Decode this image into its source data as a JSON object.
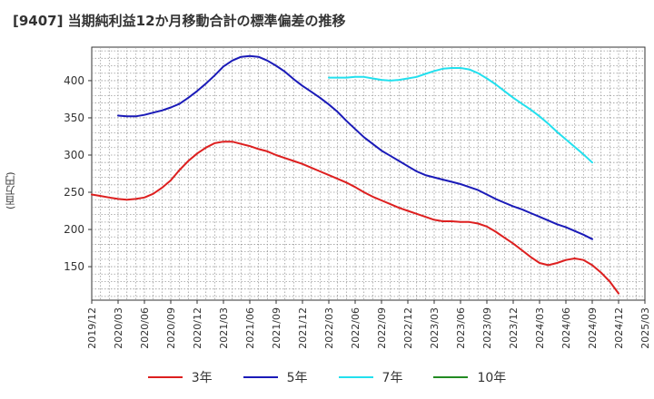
{
  "chart_data": {
    "type": "line",
    "title": "[9407]  当期純利益12か月移動合計の標準偏差の推移",
    "ylabel": "(百万円)",
    "xlabel": "",
    "ylim": [
      105,
      445
    ],
    "yticks": [
      150,
      200,
      250,
      300,
      350,
      400
    ],
    "xlim": [
      "2019-12",
      "2025-03"
    ],
    "xticks": [
      "2019/12",
      "2020/03",
      "2020/06",
      "2020/09",
      "2020/12",
      "2021/03",
      "2021/06",
      "2021/09",
      "2021/12",
      "2022/03",
      "2022/06",
      "2022/09",
      "2022/12",
      "2023/03",
      "2023/06",
      "2023/09",
      "2023/12",
      "2024/03",
      "2024/06",
      "2024/09",
      "2024/12",
      "2025/03"
    ],
    "grid": true,
    "legend_position": "bottom",
    "series": [
      {
        "name": "3年",
        "color": "#dd1f1f",
        "points": [
          [
            "2019-12",
            247
          ],
          [
            "2020-01",
            245
          ],
          [
            "2020-02",
            243
          ],
          [
            "2020-03",
            241
          ],
          [
            "2020-04",
            240
          ],
          [
            "2020-05",
            241
          ],
          [
            "2020-06",
            243
          ],
          [
            "2020-07",
            248
          ],
          [
            "2020-08",
            256
          ],
          [
            "2020-09",
            266
          ],
          [
            "2020-10",
            280
          ],
          [
            "2020-11",
            292
          ],
          [
            "2020-12",
            302
          ],
          [
            "2021-01",
            310
          ],
          [
            "2021-02",
            316
          ],
          [
            "2021-03",
            318
          ],
          [
            "2021-04",
            318
          ],
          [
            "2021-05",
            315
          ],
          [
            "2021-06",
            312
          ],
          [
            "2021-07",
            308
          ],
          [
            "2021-08",
            305
          ],
          [
            "2021-09",
            300
          ],
          [
            "2021-10",
            296
          ],
          [
            "2021-11",
            292
          ],
          [
            "2021-12",
            288
          ],
          [
            "2022-01",
            283
          ],
          [
            "2022-02",
            278
          ],
          [
            "2022-03",
            273
          ],
          [
            "2022-04",
            268
          ],
          [
            "2022-05",
            263
          ],
          [
            "2022-06",
            257
          ],
          [
            "2022-07",
            250
          ],
          [
            "2022-08",
            244
          ],
          [
            "2022-09",
            239
          ],
          [
            "2022-10",
            234
          ],
          [
            "2022-11",
            229
          ],
          [
            "2022-12",
            225
          ],
          [
            "2023-01",
            221
          ],
          [
            "2023-02",
            217
          ],
          [
            "2023-03",
            213
          ],
          [
            "2023-04",
            211
          ],
          [
            "2023-05",
            211
          ],
          [
            "2023-06",
            210
          ],
          [
            "2023-07",
            210
          ],
          [
            "2023-08",
            208
          ],
          [
            "2023-09",
            204
          ],
          [
            "2023-10",
            197
          ],
          [
            "2023-11",
            189
          ],
          [
            "2023-12",
            181
          ],
          [
            "2024-01",
            172
          ],
          [
            "2024-02",
            163
          ],
          [
            "2024-03",
            155
          ],
          [
            "2024-04",
            152
          ],
          [
            "2024-05",
            155
          ],
          [
            "2024-06",
            159
          ],
          [
            "2024-07",
            161
          ],
          [
            "2024-08",
            159
          ],
          [
            "2024-09",
            152
          ],
          [
            "2024-10",
            142
          ],
          [
            "2024-11",
            130
          ],
          [
            "2024-12",
            114
          ]
        ]
      },
      {
        "name": "5年",
        "color": "#1a1ab8",
        "points": [
          [
            "2020-03",
            353
          ],
          [
            "2020-04",
            352
          ],
          [
            "2020-05",
            352
          ],
          [
            "2020-06",
            354
          ],
          [
            "2020-07",
            357
          ],
          [
            "2020-08",
            360
          ],
          [
            "2020-09",
            364
          ],
          [
            "2020-10",
            369
          ],
          [
            "2020-11",
            377
          ],
          [
            "2020-12",
            386
          ],
          [
            "2021-01",
            396
          ],
          [
            "2021-02",
            407
          ],
          [
            "2021-03",
            419
          ],
          [
            "2021-04",
            427
          ],
          [
            "2021-05",
            432
          ],
          [
            "2021-06",
            433
          ],
          [
            "2021-07",
            432
          ],
          [
            "2021-08",
            427
          ],
          [
            "2021-09",
            420
          ],
          [
            "2021-10",
            412
          ],
          [
            "2021-11",
            402
          ],
          [
            "2021-12",
            393
          ],
          [
            "2022-01",
            385
          ],
          [
            "2022-02",
            377
          ],
          [
            "2022-03",
            368
          ],
          [
            "2022-04",
            358
          ],
          [
            "2022-05",
            346
          ],
          [
            "2022-06",
            335
          ],
          [
            "2022-07",
            324
          ],
          [
            "2022-08",
            315
          ],
          [
            "2022-09",
            306
          ],
          [
            "2022-10",
            299
          ],
          [
            "2022-11",
            292
          ],
          [
            "2022-12",
            285
          ],
          [
            "2023-01",
            278
          ],
          [
            "2023-02",
            273
          ],
          [
            "2023-03",
            270
          ],
          [
            "2023-04",
            267
          ],
          [
            "2023-05",
            264
          ],
          [
            "2023-06",
            261
          ],
          [
            "2023-07",
            257
          ],
          [
            "2023-08",
            253
          ],
          [
            "2023-09",
            247
          ],
          [
            "2023-10",
            241
          ],
          [
            "2023-11",
            236
          ],
          [
            "2023-12",
            231
          ],
          [
            "2024-01",
            227
          ],
          [
            "2024-02",
            222
          ],
          [
            "2024-03",
            217
          ],
          [
            "2024-04",
            212
          ],
          [
            "2024-05",
            207
          ],
          [
            "2024-06",
            203
          ],
          [
            "2024-07",
            198
          ],
          [
            "2024-08",
            193
          ],
          [
            "2024-09",
            187
          ]
        ]
      },
      {
        "name": "7年",
        "color": "#22e0ee",
        "points": [
          [
            "2022-03",
            404
          ],
          [
            "2022-04",
            404
          ],
          [
            "2022-05",
            404
          ],
          [
            "2022-06",
            405
          ],
          [
            "2022-07",
            405
          ],
          [
            "2022-08",
            403
          ],
          [
            "2022-09",
            401
          ],
          [
            "2022-10",
            400
          ],
          [
            "2022-11",
            401
          ],
          [
            "2022-12",
            403
          ],
          [
            "2023-01",
            405
          ],
          [
            "2023-02",
            409
          ],
          [
            "2023-03",
            413
          ],
          [
            "2023-04",
            416
          ],
          [
            "2023-05",
            417
          ],
          [
            "2023-06",
            417
          ],
          [
            "2023-07",
            415
          ],
          [
            "2023-08",
            410
          ],
          [
            "2023-09",
            403
          ],
          [
            "2023-10",
            395
          ],
          [
            "2023-11",
            386
          ],
          [
            "2023-12",
            377
          ],
          [
            "2024-01",
            369
          ],
          [
            "2024-02",
            361
          ],
          [
            "2024-03",
            352
          ],
          [
            "2024-04",
            342
          ],
          [
            "2024-05",
            331
          ],
          [
            "2024-06",
            321
          ],
          [
            "2024-07",
            311
          ],
          [
            "2024-08",
            301
          ],
          [
            "2024-09",
            290
          ]
        ]
      },
      {
        "name": "10年",
        "color": "#228b22",
        "points": []
      }
    ]
  }
}
